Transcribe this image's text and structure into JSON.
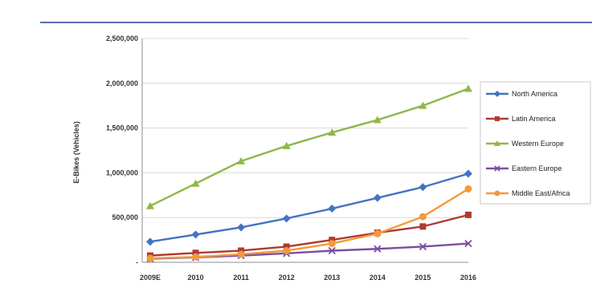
{
  "chart_data": {
    "type": "line",
    "title": "",
    "xlabel": "",
    "ylabel": "E-Bikes (Vehicles)",
    "ylim": [
      0,
      2500000
    ],
    "yticks": [
      0,
      500000,
      1000000,
      1500000,
      2000000,
      2500000
    ],
    "ytick_labels": [
      "-",
      "500,000",
      "1,000,000",
      "1,500,000",
      "2,000,000",
      "2,500,000"
    ],
    "categories": [
      "2009E",
      "2010",
      "2011",
      "2012",
      "2013",
      "2014",
      "2015",
      "2016"
    ],
    "grid": "horizontal",
    "legend_position": "right",
    "series": [
      {
        "name": "North America",
        "color": "#4472c4",
        "marker": "diamond",
        "values": [
          230000,
          310000,
          390000,
          490000,
          600000,
          720000,
          840000,
          990000
        ]
      },
      {
        "name": "Latin America",
        "color": "#b03a30",
        "marker": "square",
        "values": [
          75000,
          105000,
          130000,
          175000,
          250000,
          330000,
          400000,
          530000
        ]
      },
      {
        "name": "Western Europe",
        "color": "#8fb74a",
        "marker": "triangle",
        "values": [
          630000,
          880000,
          1130000,
          1300000,
          1450000,
          1590000,
          1750000,
          1940000
        ]
      },
      {
        "name": "Eastern Europe",
        "color": "#7a4fa0",
        "marker": "x",
        "values": [
          40000,
          55000,
          75000,
          100000,
          130000,
          150000,
          175000,
          210000
        ]
      },
      {
        "name": "Middle East/Africa",
        "color": "#f39a3a",
        "marker": "circle",
        "values": [
          45000,
          60000,
          90000,
          130000,
          210000,
          320000,
          510000,
          820000
        ]
      }
    ]
  }
}
